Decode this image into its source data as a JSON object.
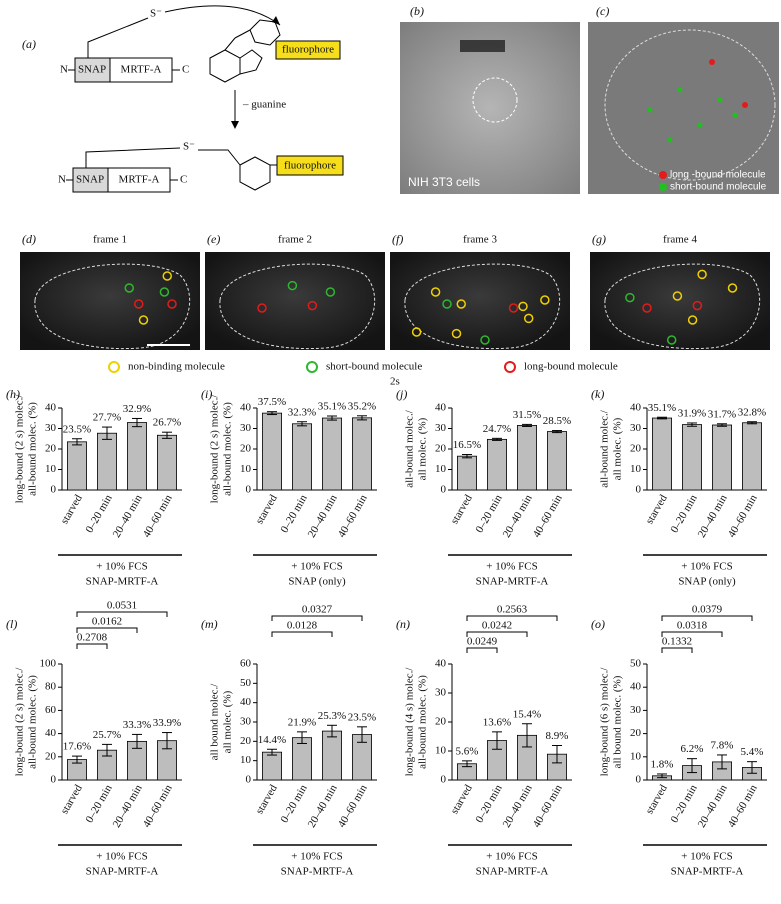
{
  "diagram": {
    "label": "(a)",
    "top": {
      "s": "S⁻",
      "n": "N",
      "snap": "SNAP",
      "mrtf": "MRTF-A",
      "c": "C",
      "fluor": "fluorophore"
    },
    "step": "– guanine",
    "bottom": {
      "s": "S⁻",
      "n": "N",
      "snap": "SNAP",
      "mrtf": "MRTF-A",
      "c": "C",
      "fluor": "fluorophore"
    }
  },
  "images": {
    "b": {
      "label": "(b)",
      "caption": "NIH 3T3 cells"
    },
    "c": {
      "label": "(c)",
      "legend": [
        "long -bound molecule",
        "short-bound molecule"
      ]
    },
    "frames": [
      {
        "label": "(d)",
        "title": "frame 1"
      },
      {
        "label": "(e)",
        "title": "frame 2"
      },
      {
        "label": "(f)",
        "title": "frame 3"
      },
      {
        "label": "(g)",
        "title": "frame 4"
      }
    ],
    "interval": "2s",
    "legend": [
      "non-binding molecule",
      "short-bound molecule",
      "long-bound molecule"
    ]
  },
  "chart_data": [
    {
      "type": "bar",
      "label": "(h)",
      "ylabel": [
        "long-bound (2 s) molec./",
        "all-bound molec. (%)"
      ],
      "categories": [
        "starved",
        "0–20 min",
        "20–40 min",
        "40–60 min"
      ],
      "values": [
        23.5,
        27.7,
        32.9,
        26.7
      ],
      "errors": [
        1.5,
        3,
        2,
        1.5
      ],
      "value_labels": [
        "23.5%",
        "27.7%",
        "32.9%",
        "26.7%"
      ],
      "ylim": [
        0,
        40
      ],
      "yticks": [
        0,
        10,
        20,
        30,
        40
      ],
      "group_labels": [
        "+ 10% FCS",
        "SNAP-MRTF-A"
      ],
      "color": "#bdbdbd"
    },
    {
      "type": "bar",
      "label": "(i)",
      "ylabel": [
        "long-bound (2 s) molec./",
        "all-bound molec. (%)"
      ],
      "categories": [
        "starved",
        "0–20 min",
        "20–40 min",
        "40–60 min"
      ],
      "values": [
        37.5,
        32.3,
        35.1,
        35.2
      ],
      "errors": [
        0.7,
        1,
        1,
        1
      ],
      "value_labels": [
        "37.5%",
        "32.3%",
        "35.1%",
        "35.2%"
      ],
      "ylim": [
        0,
        40
      ],
      "yticks": [
        0,
        10,
        20,
        30,
        40
      ],
      "group_labels": [
        "+ 10% FCS",
        "SNAP (only)"
      ],
      "color": "#bdbdbd"
    },
    {
      "type": "bar",
      "label": "(j)",
      "ylabel": [
        "all-bound molec./",
        "all molec. (%)"
      ],
      "categories": [
        "starved",
        "0–20 min",
        "20–40 min",
        "40–60 min"
      ],
      "values": [
        16.5,
        24.7,
        31.5,
        28.5
      ],
      "errors": [
        0.8,
        0.5,
        0.5,
        0.5
      ],
      "value_labels": [
        "16.5%",
        "24.7%",
        "31.5%",
        "28.5%"
      ],
      "ylim": [
        0,
        40
      ],
      "yticks": [
        0,
        10,
        20,
        30,
        40
      ],
      "group_labels": [
        "+ 10% FCS",
        "SNAP-MRTF-A"
      ],
      "color": "#bdbdbd"
    },
    {
      "type": "bar",
      "label": "(k)",
      "ylabel": [
        "all-bound molec./",
        "all molec. (%)"
      ],
      "categories": [
        "starved",
        "0–20 min",
        "20–40 min",
        "40–60 min"
      ],
      "values": [
        35.1,
        31.9,
        31.7,
        32.8
      ],
      "errors": [
        0.4,
        0.8,
        0.6,
        0.5
      ],
      "value_labels": [
        "35.1%",
        "31.9%",
        "31.7%",
        "32.8%"
      ],
      "ylim": [
        0,
        40
      ],
      "yticks": [
        0,
        10,
        20,
        30,
        40
      ],
      "group_labels": [
        "+ 10% FCS",
        "SNAP (only)"
      ],
      "color": "#bdbdbd"
    },
    {
      "type": "bar",
      "label": "(l)",
      "ylabel": [
        "long-bound (2 s) molec./",
        "all-bound molec. (%)"
      ],
      "categories": [
        "starved",
        "0–20 min",
        "20–40 min",
        "40–60 min"
      ],
      "values": [
        17.6,
        25.7,
        33.3,
        33.9
      ],
      "errors": [
        3,
        5,
        6,
        7
      ],
      "value_labels": [
        "17.6%",
        "25.7%",
        "33.3%",
        "33.9%"
      ],
      "p_values": [
        null,
        "0.2708",
        "0.0162",
        "0.0531"
      ],
      "ylim": [
        0,
        100
      ],
      "yticks": [
        0,
        20,
        40,
        60,
        80,
        100
      ],
      "group_labels": [
        "+ 10% FCS",
        "SNAP-MRTF-A"
      ],
      "color": "#bdbdbd"
    },
    {
      "type": "bar",
      "label": "(m)",
      "ylabel": [
        "all bound molec./",
        "all molec. (%)"
      ],
      "categories": [
        "starved",
        "0–20 min",
        "20–40 min",
        "40–60 min"
      ],
      "values": [
        14.4,
        21.9,
        25.3,
        23.5
      ],
      "errors": [
        1.5,
        3,
        3,
        4
      ],
      "value_labels": [
        "14.4%",
        "21.9%",
        "25.3%",
        "23.5%"
      ],
      "p_values": [
        null,
        null,
        "0.0128",
        "0.0327"
      ],
      "ylim": [
        0,
        60
      ],
      "yticks": [
        0,
        10,
        20,
        30,
        40,
        50,
        60
      ],
      "group_labels": [
        "+ 10% FCS",
        "SNAP-MRTF-A"
      ],
      "color": "#bdbdbd"
    },
    {
      "type": "bar",
      "label": "(n)",
      "ylabel": [
        "long-bound (4 s) molec./",
        "all-bound molec. (%)"
      ],
      "categories": [
        "starved",
        "0–20 min",
        "20–40 min",
        "40–60 min"
      ],
      "values": [
        5.6,
        13.6,
        15.4,
        8.9
      ],
      "errors": [
        1,
        3,
        4,
        3
      ],
      "value_labels": [
        "5.6%",
        "13.6%",
        "15.4%",
        "8.9%"
      ],
      "p_values": [
        null,
        "0.0249",
        "0.0242",
        "0.2563"
      ],
      "ylim": [
        0,
        40
      ],
      "yticks": [
        0,
        10,
        20,
        30,
        40
      ],
      "group_labels": [
        "+ 10% FCS",
        "SNAP-MRTF-A"
      ],
      "color": "#bdbdbd"
    },
    {
      "type": "bar",
      "label": "(o)",
      "ylabel": [
        "long-bound (6 s) molec./",
        "all bound molec. (%)"
      ],
      "categories": [
        "starved",
        "0–20 min",
        "20–40 min",
        "40–60 min"
      ],
      "values": [
        1.8,
        6.2,
        7.8,
        5.4
      ],
      "errors": [
        0.8,
        3,
        3,
        2.5
      ],
      "value_labels": [
        "1.8%",
        "6.2%",
        "7.8%",
        "5.4%"
      ],
      "p_values": [
        null,
        "0.1332",
        "0.0318",
        "0.0379"
      ],
      "ylim": [
        0,
        50
      ],
      "yticks": [
        0,
        10,
        20,
        30,
        40,
        50
      ],
      "group_labels": [
        "+ 10% FCS",
        "SNAP-MRTF-A"
      ],
      "color": "#bdbdbd"
    }
  ]
}
